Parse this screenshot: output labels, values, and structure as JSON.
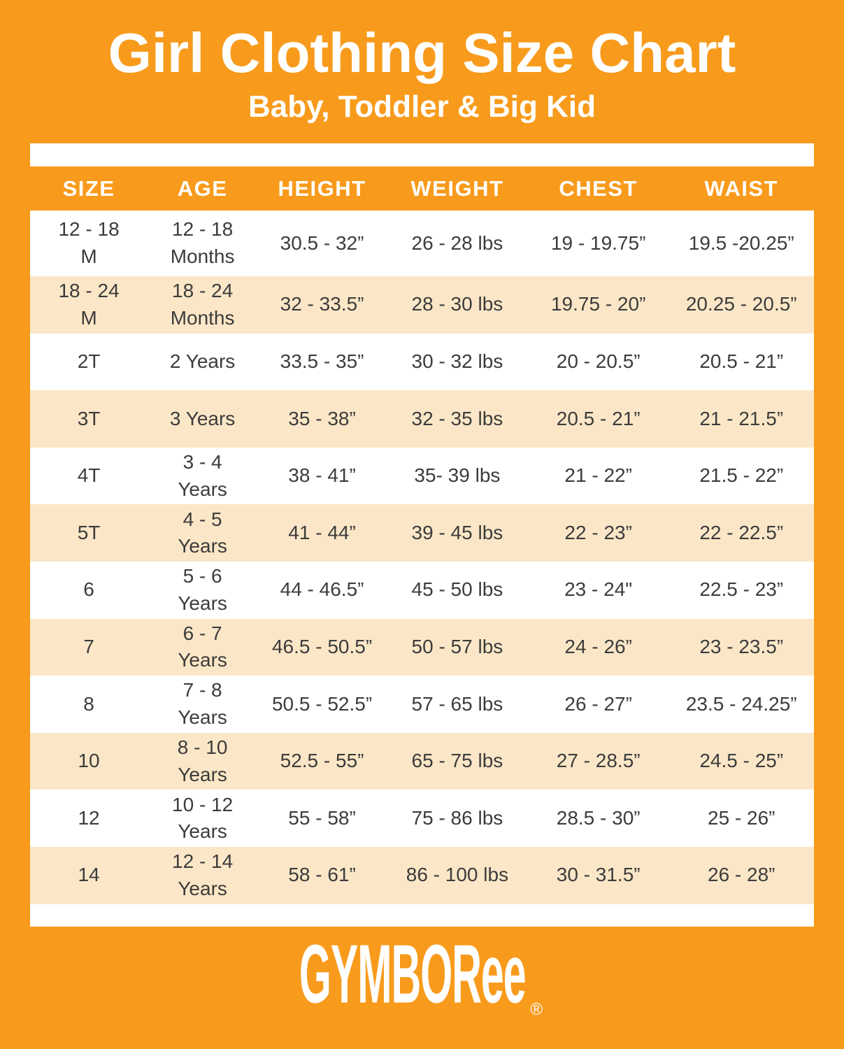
{
  "title": "Girl Clothing Size Chart",
  "subtitle": "Baby, Toddler & Big Kid",
  "brand": {
    "name": "GYMBORee",
    "registered": "®"
  },
  "colors": {
    "background": "#F89B1C",
    "stripe": "#FBE7C7",
    "row_white": "#FFFFFF",
    "header_text": "#FFFFFF",
    "cell_text": "#3C3C3C"
  },
  "chart_data": {
    "type": "table",
    "title": "Girl Clothing Size Chart",
    "subtitle": "Baby, Toddler & Big Kid",
    "columns": [
      "SIZE",
      "AGE",
      "HEIGHT",
      "WEIGHT",
      "CHEST",
      "WAIST"
    ],
    "rows": [
      [
        "12 - 18\nM",
        "12 - 18\nMonths",
        "30.5 - 32”",
        "26 - 28 lbs",
        "19 - 19.75”",
        "19.5 -20.25”"
      ],
      [
        "18 - 24\nM",
        "18 - 24\nMonths",
        "32 - 33.5”",
        "28 - 30 lbs",
        "19.75 - 20”",
        "20.25 - 20.5”"
      ],
      [
        "2T",
        "2 Years",
        "33.5 - 35”",
        "30 - 32 lbs",
        "20 - 20.5”",
        "20.5 - 21”"
      ],
      [
        "3T",
        "3 Years",
        "35 - 38”",
        "32 - 35 lbs",
        "20.5 - 21”",
        "21 - 21.5”"
      ],
      [
        "4T",
        "3 - 4\nYears",
        "38 - 41”",
        "35- 39 lbs",
        "21 - 22”",
        "21.5 - 22”"
      ],
      [
        "5T",
        "4 - 5\nYears",
        "41 - 44”",
        "39 - 45 lbs",
        "22 - 23”",
        "22 - 22.5”"
      ],
      [
        "6",
        "5 - 6\nYears",
        "44 - 46.5”",
        "45 - 50 lbs",
        "23 - 24\"",
        "22.5 - 23”"
      ],
      [
        "7",
        "6 - 7\nYears",
        "46.5 - 50.5”",
        "50 - 57 lbs",
        "24 - 26”",
        "23 - 23.5”"
      ],
      [
        "8",
        "7 - 8\nYears",
        "50.5 - 52.5”",
        "57 - 65 lbs",
        "26 - 27”",
        "23.5 - 24.25”"
      ],
      [
        "10",
        "8 - 10\nYears",
        "52.5 - 55”",
        "65 - 75 lbs",
        "27 - 28.5”",
        "24.5 - 25”"
      ],
      [
        "12",
        "10 - 12\nYears",
        "55 - 58”",
        "75 - 86 lbs",
        "28.5 - 30”",
        "25 - 26”"
      ],
      [
        "14",
        "12 - 14\nYears",
        "58 - 61”",
        "86 - 100 lbs",
        "30 - 31.5”",
        "26 - 28”"
      ]
    ]
  }
}
